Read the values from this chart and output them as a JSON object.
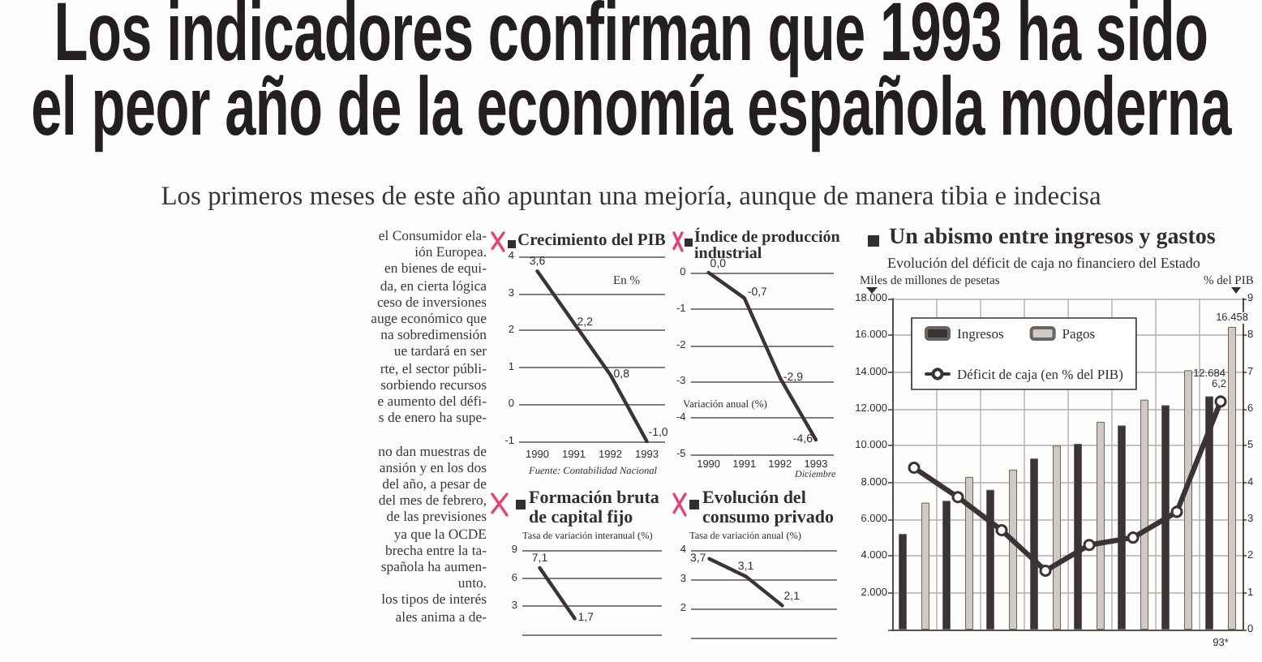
{
  "chart_data": [
    {
      "type": "other",
      "title": "Los indicadores confirman que 1993 ha sido el peor año de la economía española moderna",
      "subtitle": "Los primeros meses de este año apuntan una mejoría, aunque de manera tibia e indecisa"
    },
    {
      "type": "other",
      "annotations": [
        "el Consumidor ela-",
        "ión Europea.",
        "en bienes de equi-",
        "da, en cierta lógica",
        "ceso de inversiones",
        "auge económico que",
        "na sobredimensión",
        "ue tardará en ser",
        "rte, el sector públi-",
        "sorbiendo recursos",
        "e aumento del défi-",
        "s de enero ha supe-",
        "no dan muestras de",
        "ansión y en los dos",
        "del año, a pesar de",
        "del mes de febrero,",
        "de las previsiones",
        "ya que la OCDE",
        "brecha entre la ta-",
        "spañola ha aumen-",
        "unto.",
        "los tipos de interés",
        "ales anima a de-"
      ]
    },
    {
      "type": "line",
      "title": "Crecimiento del PIB",
      "subtitle": "En %",
      "annotations": [
        "Fuente: Contabilidad Nacional"
      ],
      "categories": [
        "1990",
        "1991",
        "1992",
        "1993"
      ],
      "values": [
        3.6,
        2.2,
        0.8,
        -1.0
      ],
      "value_labels": [
        "3,6",
        "2,2",
        "0,8",
        "-1,0"
      ],
      "color": "#3a3434",
      "ylim": [
        -1,
        4
      ],
      "yticks": [
        -1,
        0,
        1,
        2,
        3,
        4
      ],
      "grid": "y"
    },
    {
      "type": "line",
      "title": "Índice de producción industrial",
      "subtitle": "Variación anual (%)",
      "annotations": [
        "Diciembre"
      ],
      "categories": [
        "1990",
        "1991",
        "1992",
        "1993"
      ],
      "values": [
        0,
        -0.7,
        -2.9,
        -4.6
      ],
      "value_labels": [
        "0,0",
        "-0,7",
        "-2,9",
        "-4,6"
      ],
      "color": "#3a3434",
      "ylim": [
        -5,
        0
      ],
      "yticks": [
        -5,
        -4,
        -3,
        -2,
        -1,
        0
      ],
      "grid": "y"
    },
    {
      "type": "line",
      "title": "Formación bruta de capital fijo",
      "subtitle": "Tasa de variación interanual (%)",
      "categories": [
        null,
        null,
        null,
        null
      ],
      "values": [
        7.1,
        1.7,
        null,
        null
      ],
      "value_labels": [
        "7,1",
        "1,7",
        null,
        null
      ],
      "color": "#3a3434",
      "ylim": [
        0,
        9
      ],
      "yticks": [
        {
          "value": 0,
          "label": null
        },
        3,
        6,
        9
      ],
      "grid": "y",
      "tick_labels": "y"
    },
    {
      "type": "line",
      "title": "Evolución del consumo privado",
      "subtitle": "Tasa de variación anual (%)",
      "categories": [
        null,
        null,
        null,
        null
      ],
      "values": [
        3.7,
        3.1,
        2.1,
        null
      ],
      "value_labels": [
        "3,7",
        "3,1",
        "2,1",
        null
      ],
      "color": "#3a3434",
      "ylim": [
        1,
        4
      ],
      "yticks": [
        {
          "value": 1,
          "label": null
        },
        2,
        3,
        4
      ],
      "grid": "y",
      "tick_labels": "y"
    },
    {
      "type": "bar",
      "title": "Un abismo entre ingresos y gastos",
      "subtitle": "Evolución del déficit de caja no financiero del Estado",
      "ylabel": "Miles de millones de pesetas",
      "y2label": "% del PIB",
      "categories": [
        null,
        null,
        null,
        null,
        null,
        null,
        null,
        "93*"
      ],
      "series": [
        {
          "name": "Ingresos",
          "color": "#3a3434",
          "values": [
            5200,
            7000,
            7600,
            9300,
            10100,
            11100,
            12200,
            12684
          ],
          "value_labels": [
            null,
            null,
            null,
            null,
            null,
            null,
            null,
            "12.684"
          ]
        },
        {
          "name": "Pagos",
          "color": "#cfcac5",
          "values": [
            6900,
            8300,
            8700,
            10000,
            11300,
            12500,
            14100,
            16458
          ],
          "value_labels": [
            null,
            null,
            null,
            null,
            null,
            null,
            null,
            "16.458"
          ]
        },
        {
          "name": "Déficit de caja (en % del PIB)",
          "type": "line",
          "axis": "y2",
          "color": "#3a3434",
          "values": [
            4.4,
            3.6,
            2.7,
            1.6,
            2.3,
            2.5,
            3.2,
            6.2
          ],
          "value_labels": [
            null,
            null,
            null,
            null,
            null,
            null,
            null,
            "6,2"
          ]
        }
      ],
      "ylim": [
        0,
        18000
      ],
      "yticks": [
        {
          "value": 2000,
          "label": "2.000"
        },
        {
          "value": 4000,
          "label": "4.000"
        },
        {
          "value": 6000,
          "label": "6.000"
        },
        {
          "value": 8000,
          "label": "8.000"
        },
        {
          "value": 10000,
          "label": "10.000"
        },
        {
          "value": 12000,
          "label": "12.000"
        },
        {
          "value": 14000,
          "label": "14.000"
        },
        {
          "value": 16000,
          "label": "16.000"
        },
        {
          "value": 18000,
          "label": "18.000"
        }
      ],
      "y2lim": [
        0,
        9
      ],
      "y2ticks": [
        0,
        1,
        2,
        3,
        4,
        5,
        6,
        7,
        8,
        9
      ],
      "grid": true,
      "legend": "top left",
      "marker": "circle"
    }
  ]
}
